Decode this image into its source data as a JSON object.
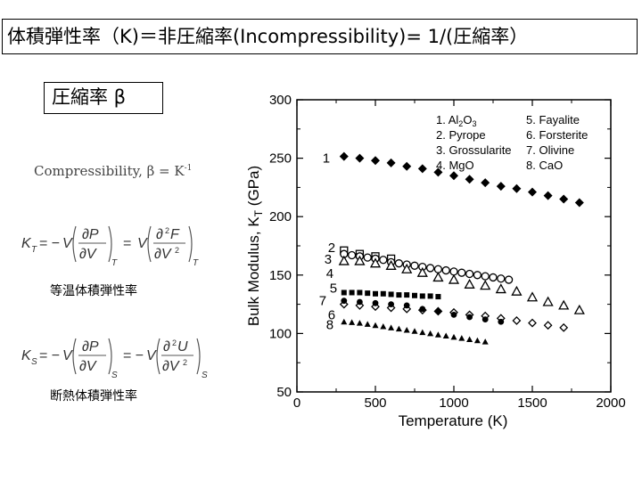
{
  "title": "体積弾性率（K)＝非圧縮率(Incompressibility)= 1/(圧縮率）",
  "beta_label": "圧縮率 β",
  "compressibility_text": "Compressibility, β = K",
  "compressibility_sup": "-1",
  "isothermal_caption": "等温体積弾性率",
  "adiabatic_caption": "断熱体積弾性率",
  "chart_data": {
    "type": "scatter",
    "xlabel": "Temperature (K)",
    "ylabel": "Bulk Modulus, K",
    "ylabel_sub": "T",
    "ylabel_unit": " (GPa)",
    "xlim": [
      0,
      2000
    ],
    "ylim": [
      50,
      300
    ],
    "xticks": [
      "0",
      "500",
      "1000",
      "1500",
      "2000"
    ],
    "yticks": [
      "50",
      "100",
      "150",
      "200",
      "250",
      "300"
    ],
    "legend": [
      {
        "num": "1.",
        "name": "Al",
        "sub": "2",
        "name2": "O",
        "sub2": "3"
      },
      {
        "num": "2.",
        "name": "Pyrope"
      },
      {
        "num": "3.",
        "name": "Grossularite"
      },
      {
        "num": "4.",
        "name": "MgO"
      },
      {
        "num": "5.",
        "name": "Fayalite"
      },
      {
        "num": "6.",
        "name": "Forsterite"
      },
      {
        "num": "7.",
        "name": "Olivine"
      },
      {
        "num": "8.",
        "name": "CaO"
      }
    ],
    "series": [
      {
        "name": "Al2O3",
        "label": "1",
        "marker": "filled-diamond",
        "points": [
          [
            300,
            251.5
          ],
          [
            400,
            250
          ],
          [
            500,
            248
          ],
          [
            600,
            246
          ],
          [
            700,
            243
          ],
          [
            800,
            241
          ],
          [
            900,
            238
          ],
          [
            1000,
            235
          ],
          [
            1100,
            232
          ],
          [
            1200,
            229
          ],
          [
            1300,
            226
          ],
          [
            1400,
            224
          ],
          [
            1500,
            221
          ],
          [
            1600,
            218
          ],
          [
            1700,
            215
          ],
          [
            1800,
            212
          ]
        ]
      },
      {
        "name": "Pyrope",
        "label": "2",
        "marker": "open-square",
        "points": [
          [
            300,
            171
          ],
          [
            400,
            168
          ],
          [
            500,
            166
          ],
          [
            600,
            164
          ]
        ]
      },
      {
        "name": "Grossularite",
        "label": "3",
        "marker": "open-circle",
        "points": [
          [
            300,
            168
          ],
          [
            350,
            167
          ],
          [
            400,
            166
          ],
          [
            450,
            165
          ],
          [
            500,
            164
          ],
          [
            550,
            163
          ],
          [
            600,
            161
          ],
          [
            650,
            160
          ],
          [
            700,
            159
          ],
          [
            750,
            158
          ],
          [
            800,
            157
          ],
          [
            850,
            156
          ],
          [
            900,
            155
          ],
          [
            950,
            154
          ],
          [
            1000,
            153
          ],
          [
            1050,
            152
          ],
          [
            1100,
            151
          ],
          [
            1150,
            150
          ],
          [
            1200,
            149
          ],
          [
            1250,
            148
          ],
          [
            1300,
            147
          ],
          [
            1350,
            146
          ]
        ]
      },
      {
        "name": "MgO",
        "label": "4",
        "marker": "open-triangle",
        "points": [
          [
            300,
            162
          ],
          [
            400,
            162
          ],
          [
            500,
            160
          ],
          [
            600,
            158
          ],
          [
            700,
            155
          ],
          [
            800,
            152
          ],
          [
            900,
            148
          ],
          [
            1000,
            146
          ],
          [
            1100,
            142
          ],
          [
            1200,
            141
          ],
          [
            1300,
            138
          ],
          [
            1400,
            136
          ],
          [
            1500,
            131
          ],
          [
            1600,
            127
          ],
          [
            1700,
            124
          ],
          [
            1800,
            120
          ]
        ]
      },
      {
        "name": "Fayalite",
        "label": "5",
        "marker": "filled-square",
        "points": [
          [
            300,
            135
          ],
          [
            350,
            135
          ],
          [
            400,
            135
          ],
          [
            450,
            134.5
          ],
          [
            500,
            134
          ],
          [
            550,
            134
          ],
          [
            600,
            133.5
          ],
          [
            650,
            133
          ],
          [
            700,
            133
          ],
          [
            750,
            132.5
          ],
          [
            800,
            132
          ],
          [
            850,
            132
          ],
          [
            900,
            131.5
          ]
        ]
      },
      {
        "name": "Forsterite",
        "label": "6",
        "marker": "open-diamond",
        "points": [
          [
            300,
            125
          ],
          [
            400,
            124
          ],
          [
            500,
            123
          ],
          [
            600,
            122
          ],
          [
            700,
            121
          ],
          [
            800,
            120
          ],
          [
            900,
            119
          ],
          [
            1000,
            118
          ],
          [
            1100,
            116
          ],
          [
            1200,
            115
          ],
          [
            1300,
            113
          ],
          [
            1400,
            111
          ],
          [
            1500,
            109
          ],
          [
            1600,
            107
          ],
          [
            1700,
            105
          ]
        ]
      },
      {
        "name": "Olivine",
        "label": "7",
        "marker": "filled-circle",
        "points": [
          [
            300,
            128
          ],
          [
            400,
            127
          ],
          [
            500,
            126
          ],
          [
            600,
            125
          ],
          [
            700,
            124
          ],
          [
            800,
            121
          ],
          [
            900,
            119
          ],
          [
            1000,
            116
          ],
          [
            1100,
            114
          ],
          [
            1200,
            112
          ],
          [
            1300,
            110
          ]
        ]
      },
      {
        "name": "CaO",
        "label": "8",
        "marker": "filled-triangle",
        "points": [
          [
            300,
            110
          ],
          [
            350,
            109.5
          ],
          [
            400,
            109
          ],
          [
            450,
            108
          ],
          [
            500,
            107
          ],
          [
            550,
            106
          ],
          [
            600,
            105
          ],
          [
            650,
            104
          ],
          [
            700,
            103
          ],
          [
            750,
            102
          ],
          [
            800,
            101
          ],
          [
            850,
            100
          ],
          [
            900,
            99
          ],
          [
            950,
            98
          ],
          [
            1000,
            97
          ],
          [
            1050,
            96
          ],
          [
            1100,
            95
          ],
          [
            1150,
            94
          ],
          [
            1200,
            93
          ]
        ]
      }
    ]
  }
}
